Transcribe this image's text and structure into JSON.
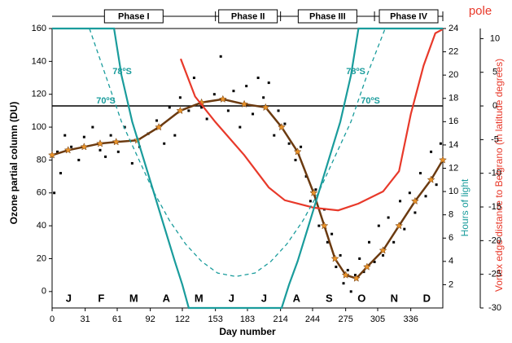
{
  "chart_data": {
    "type": "line",
    "xlabel": "Day number",
    "ylabel": "Ozone partial column (DU)",
    "y2label": "Vortex edge distance to Belgrano (in latitude degrees)",
    "y3label": "Hours of light",
    "pole_label": "pole",
    "xlim": [
      0,
      366
    ],
    "xticks": [
      0,
      31,
      61,
      92,
      122,
      153,
      183,
      214,
      244,
      275,
      305,
      336
    ],
    "ylim": [
      -10,
      160
    ],
    "yticks": [
      0,
      20,
      40,
      60,
      80,
      100,
      120,
      140,
      160
    ],
    "y2lim": [
      -30,
      11.5
    ],
    "y2ticks": [
      -30,
      -25,
      -20,
      -15,
      -10,
      -5,
      0,
      5,
      10
    ],
    "y3lim": [
      0,
      24
    ],
    "y3ticks": [
      2,
      4,
      6,
      8,
      10,
      12,
      14,
      16,
      18,
      20,
      22,
      24
    ],
    "months": [
      "J",
      "F",
      "M",
      "A",
      "M",
      "J",
      "J",
      "A",
      "S",
      "O",
      "N",
      "D"
    ],
    "phases": [
      {
        "label": "Phase I",
        "start": 0,
        "end": 153
      },
      {
        "label": "Phase II",
        "start": 153,
        "end": 214
      },
      {
        "label": "Phase III",
        "start": 214,
        "end": 302
      },
      {
        "label": "Phase IV",
        "start": 302,
        "end": 366
      }
    ],
    "hlines": [
      {
        "value": 0,
        "axis": "y2",
        "color": "#000000"
      }
    ],
    "series": [
      {
        "style": "scatter",
        "axis": "y",
        "color": "#000000",
        "x": [
          2,
          5,
          8,
          12,
          18,
          25,
          30,
          38,
          45,
          50,
          55,
          62,
          68,
          75,
          82,
          90,
          98,
          105,
          110,
          115,
          120,
          128,
          133,
          140,
          145,
          152,
          158,
          165,
          170,
          176,
          182,
          188,
          193,
          198,
          203,
          208,
          212,
          218,
          222,
          228,
          233,
          238,
          242,
          247,
          250,
          255,
          258,
          262,
          266,
          270,
          273,
          277,
          280,
          284,
          288,
          292,
          297,
          302,
          306,
          310,
          315,
          320,
          326,
          330,
          335,
          340,
          345,
          350,
          355,
          360,
          364
        ],
        "values": [
          60,
          85,
          72,
          95,
          88,
          80,
          94,
          100,
          86,
          82,
          95,
          85,
          100,
          78,
          88,
          96,
          104,
          90,
          112,
          95,
          118,
          110,
          130,
          112,
          105,
          120,
          143,
          110,
          122,
          100,
          125,
          108,
          130,
          118,
          127,
          95,
          110,
          102,
          90,
          80,
          88,
          70,
          55,
          62,
          40,
          50,
          30,
          35,
          15,
          22,
          5,
          13,
          0,
          10,
          20,
          12,
          30,
          18,
          40,
          22,
          45,
          30,
          55,
          38,
          60,
          48,
          72,
          58,
          85,
          65,
          90
        ]
      },
      {
        "style": "mean",
        "axis": "y",
        "color": "#6b3a10",
        "marker_color": "#e8922a",
        "x": [
          0,
          15,
          30,
          45,
          60,
          80,
          100,
          120,
          140,
          160,
          180,
          200,
          215,
          230,
          245,
          255,
          265,
          275,
          285,
          295,
          310,
          325,
          340,
          355,
          366
        ],
        "values": [
          83,
          86,
          88,
          90,
          91,
          92,
          100,
          110,
          115,
          117,
          114,
          112,
          100,
          85,
          60,
          40,
          20,
          10,
          8,
          15,
          25,
          40,
          55,
          68,
          80
        ]
      },
      {
        "style": "line",
        "axis": "y2",
        "color": "#e8392a",
        "x": [
          120.5,
          134,
          153,
          180,
          203,
          218,
          245,
          268,
          287,
          310,
          325,
          336,
          348,
          359,
          366
        ],
        "values": [
          7,
          1.4,
          -2.4,
          -7.3,
          -12.1,
          -14,
          -15.1,
          -15.5,
          -14.5,
          -12.7,
          -9.7,
          -1.2,
          6,
          10.8,
          11.4
        ]
      },
      {
        "name": "78ºS",
        "style": "line",
        "axis": "y3",
        "color": "#1a9c9c",
        "x": [
          0,
          58,
          65,
          75,
          85,
          95,
          105,
          115,
          122,
          128,
          215,
          222,
          230,
          240,
          250,
          260,
          270,
          280,
          287,
          366
        ],
        "values": [
          24,
          24,
          20,
          16,
          13,
          10,
          7,
          4,
          2,
          0,
          0,
          2,
          4,
          7,
          10,
          13,
          16,
          20,
          24,
          24
        ]
      },
      {
        "name": "70ºS",
        "style": "dashed",
        "axis": "y3",
        "color": "#1a9c9c",
        "x": [
          35,
          50,
          65,
          80,
          95,
          110,
          125,
          140,
          155,
          172,
          190,
          205,
          220,
          235,
          250,
          265,
          280,
          295,
          312
        ],
        "values": [
          24,
          20,
          16,
          13,
          10,
          7.5,
          5.5,
          4,
          3,
          2.7,
          3,
          4,
          5.5,
          7.5,
          10,
          13,
          16,
          20,
          24
        ]
      }
    ]
  }
}
